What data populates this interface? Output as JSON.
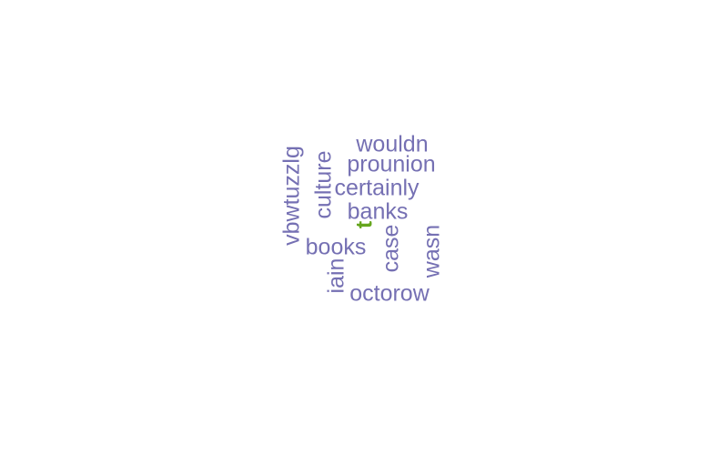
{
  "colors": {
    "primary": "#7570b3",
    "accent": "#66a61e"
  },
  "words": [
    {
      "text": "wouldn",
      "orientation": "horizontal",
      "color": "#7570b3"
    },
    {
      "text": "prounion",
      "orientation": "horizontal",
      "color": "#7570b3"
    },
    {
      "text": "certainly",
      "orientation": "horizontal",
      "color": "#7570b3"
    },
    {
      "text": "banks",
      "orientation": "horizontal",
      "color": "#7570b3"
    },
    {
      "text": "books",
      "orientation": "horizontal",
      "color": "#7570b3"
    },
    {
      "text": "octorow",
      "orientation": "horizontal",
      "color": "#7570b3"
    },
    {
      "text": "vbwtuzzlg",
      "orientation": "vertical",
      "color": "#7570b3"
    },
    {
      "text": "culture",
      "orientation": "vertical",
      "color": "#7570b3"
    },
    {
      "text": "case",
      "orientation": "vertical",
      "color": "#7570b3"
    },
    {
      "text": "wasn",
      "orientation": "vertical",
      "color": "#7570b3"
    },
    {
      "text": "iain",
      "orientation": "vertical",
      "color": "#7570b3"
    },
    {
      "text": "t",
      "orientation": "vertical",
      "color": "#66a61e"
    }
  ]
}
